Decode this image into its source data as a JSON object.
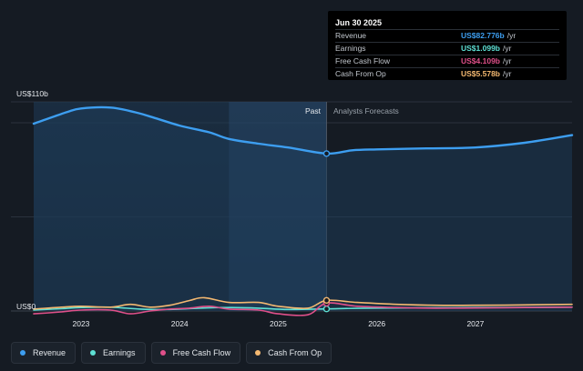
{
  "chart_data": {
    "type": "line",
    "y_top_label": "US$110b",
    "y_zero_label": "US$0",
    "ylim": [
      0,
      110
    ],
    "xlim": [
      2022.52,
      2027.98
    ],
    "x_ticks": [
      {
        "value": 2023.0,
        "label": "2023"
      },
      {
        "value": 2024.0,
        "label": "2024"
      },
      {
        "value": 2025.0,
        "label": "2025"
      },
      {
        "value": 2026.0,
        "label": "2026"
      },
      {
        "value": 2027.0,
        "label": "2027"
      }
    ],
    "past_label": "Past",
    "forecast_label": "Analysts Forecasts",
    "past_split_x": 2025.49,
    "highlight_start_x": 2024.5,
    "grid": true,
    "legend_position": "bottom",
    "series": [
      {
        "name": "Revenue",
        "color": "#3d9ef0",
        "x": [
          2022.52,
          2022.85,
          2023.0,
          2023.3,
          2023.55,
          2023.75,
          2024.0,
          2024.3,
          2024.5,
          2024.8,
          2025.1,
          2025.49,
          2025.75,
          2026.0,
          2026.5,
          2027.0,
          2027.5,
          2027.98
        ],
        "y": [
          98.5,
          104.5,
          106.5,
          107.0,
          104.5,
          101.5,
          97.5,
          94.0,
          90.5,
          88.0,
          86.0,
          82.776,
          84.5,
          85.0,
          85.5,
          86.0,
          88.5,
          92.5
        ]
      },
      {
        "name": "Earnings",
        "color": "#5ee0d4",
        "x": [
          2022.52,
          2022.8,
          2023.0,
          2023.3,
          2023.6,
          2023.9,
          2024.2,
          2024.5,
          2024.8,
          2025.1,
          2025.49,
          2025.8,
          2026.2,
          2026.6,
          2027.0,
          2027.5,
          2027.98
        ],
        "y": [
          0.5,
          1.2,
          1.8,
          2.0,
          1.0,
          0.8,
          1.5,
          1.8,
          1.5,
          0.8,
          1.099,
          1.4,
          1.6,
          1.7,
          1.8,
          1.9,
          2.0
        ]
      },
      {
        "name": "Free Cash Flow",
        "color": "#e0508a",
        "x": [
          2022.52,
          2022.8,
          2023.0,
          2023.3,
          2023.5,
          2023.7,
          2023.9,
          2024.1,
          2024.3,
          2024.5,
          2024.8,
          2025.0,
          2025.3,
          2025.49,
          2025.8,
          2026.2,
          2026.6,
          2027.0,
          2027.5,
          2027.98
        ],
        "y": [
          -1.5,
          -0.5,
          0.5,
          0.5,
          -1.5,
          0.0,
          1.0,
          1.5,
          2.5,
          1.0,
          0.5,
          -1.5,
          -2.0,
          4.109,
          2.5,
          1.8,
          1.5,
          1.6,
          1.8,
          2.0
        ]
      },
      {
        "name": "Cash From Op",
        "color": "#f5b971",
        "x": [
          2022.52,
          2022.8,
          2023.0,
          2023.3,
          2023.5,
          2023.7,
          2023.9,
          2024.1,
          2024.25,
          2024.5,
          2024.8,
          2025.0,
          2025.3,
          2025.49,
          2025.8,
          2026.2,
          2026.6,
          2027.0,
          2027.5,
          2027.98
        ],
        "y": [
          1.0,
          2.0,
          2.5,
          2.0,
          3.5,
          2.0,
          3.0,
          5.5,
          7.0,
          4.5,
          4.5,
          2.5,
          1.5,
          5.578,
          4.5,
          3.5,
          3.0,
          3.0,
          3.2,
          3.5
        ]
      }
    ]
  },
  "tooltip": {
    "date": "Jun 30 2025",
    "rows": [
      {
        "label": "Revenue",
        "value": "US$82.776b",
        "unit": "/yr",
        "color": "#3d9ef0"
      },
      {
        "label": "Earnings",
        "value": "US$1.099b",
        "unit": "/yr",
        "color": "#5ee0d4"
      },
      {
        "label": "Free Cash Flow",
        "value": "US$4.109b",
        "unit": "/yr",
        "color": "#e0508a"
      },
      {
        "label": "Cash From Op",
        "value": "US$5.578b",
        "unit": "/yr",
        "color": "#f5b971"
      }
    ]
  },
  "legend": [
    {
      "label": "Revenue",
      "color": "#3d9ef0"
    },
    {
      "label": "Earnings",
      "color": "#5ee0d4"
    },
    {
      "label": "Free Cash Flow",
      "color": "#e0508a"
    },
    {
      "label": "Cash From Op",
      "color": "#f5b971"
    }
  ]
}
